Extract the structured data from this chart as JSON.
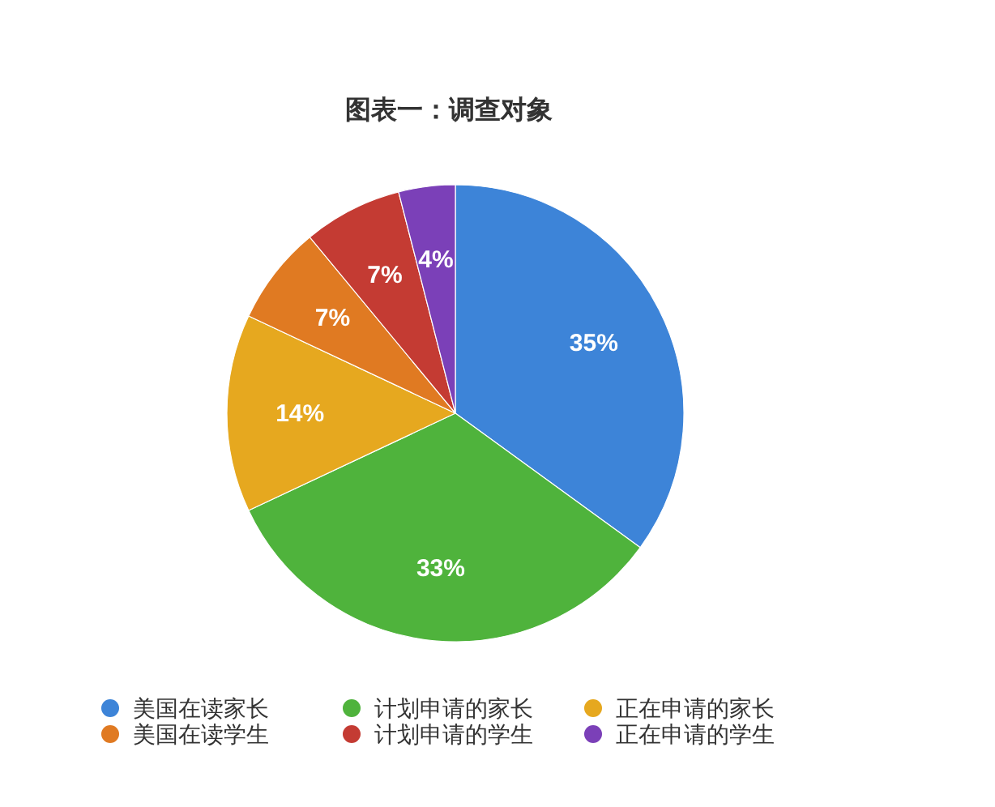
{
  "chart_data": {
    "type": "pie",
    "title": "图表一：调查对象",
    "categories": [
      "美国在读家长",
      "计划申请的家长",
      "正在申请的家长",
      "美国在读学生",
      "计划申请的学生",
      "正在申请的学生"
    ],
    "values": [
      35,
      33,
      14,
      7,
      7,
      4
    ],
    "value_labels": [
      "35%",
      "33%",
      "14%",
      "7%",
      "7%",
      "4%"
    ],
    "colors": [
      "#3d84d8",
      "#4fb33c",
      "#e6a81f",
      "#e07a22",
      "#c43b33",
      "#7b40b8"
    ],
    "legend": "bottom"
  }
}
